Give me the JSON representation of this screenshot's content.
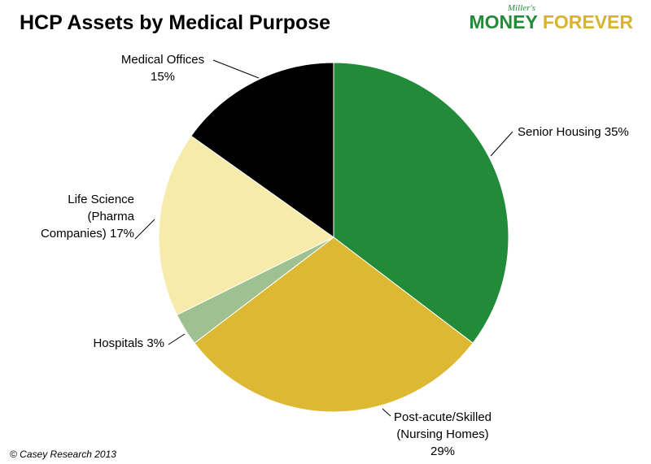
{
  "title": "HCP Assets by Medical Purpose",
  "logo": {
    "small": "Miller's",
    "money": "MONEY",
    "forever": "FOREVER"
  },
  "credit": "© Casey Research 2013",
  "chart_data": {
    "type": "pie",
    "title": "HCP Assets by Medical Purpose",
    "slices": [
      {
        "label": "Senior Housing",
        "value": 35,
        "color": "#228B3A",
        "label_lines": [
          "Senior Housing 35%"
        ]
      },
      {
        "label": "Post-acute/Skilled (Nursing Homes)",
        "value": 29,
        "color": "#DDB832",
        "label_lines": [
          "Post-acute/Skilled",
          "(Nursing Homes)",
          "29%"
        ]
      },
      {
        "label": "Hospitals",
        "value": 3,
        "color": "#9FC090",
        "label_lines": [
          "Hospitals 3%"
        ]
      },
      {
        "label": "Life Science (Pharma Companies)",
        "value": 17,
        "color": "#F7EBAC",
        "label_lines": [
          "Life Science",
          "(Pharma",
          "Companies) 17%"
        ]
      },
      {
        "label": "Medical Offices",
        "value": 15,
        "color": "#000000",
        "label_lines": [
          "Medical Offices",
          "15%"
        ]
      }
    ]
  }
}
